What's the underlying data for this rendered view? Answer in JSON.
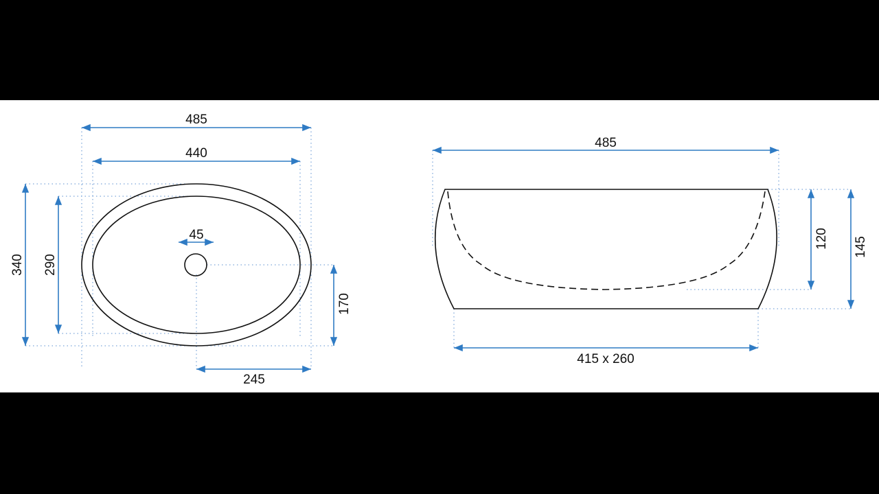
{
  "colors": {
    "background_band": "#000000",
    "drawing_area": "#ffffff",
    "dimension_lines": "#2f7bc4",
    "outline": "#111111"
  },
  "top_view": {
    "outer_width": "485",
    "inner_width": "440",
    "drain_diameter": "45",
    "outer_depth": "340",
    "inner_depth": "290",
    "drain_offset_vertical": "170",
    "drain_offset_horizontal": "245"
  },
  "side_view": {
    "top_width": "485",
    "inner_height": "120",
    "total_height": "145",
    "base_size": "415 x 260"
  }
}
